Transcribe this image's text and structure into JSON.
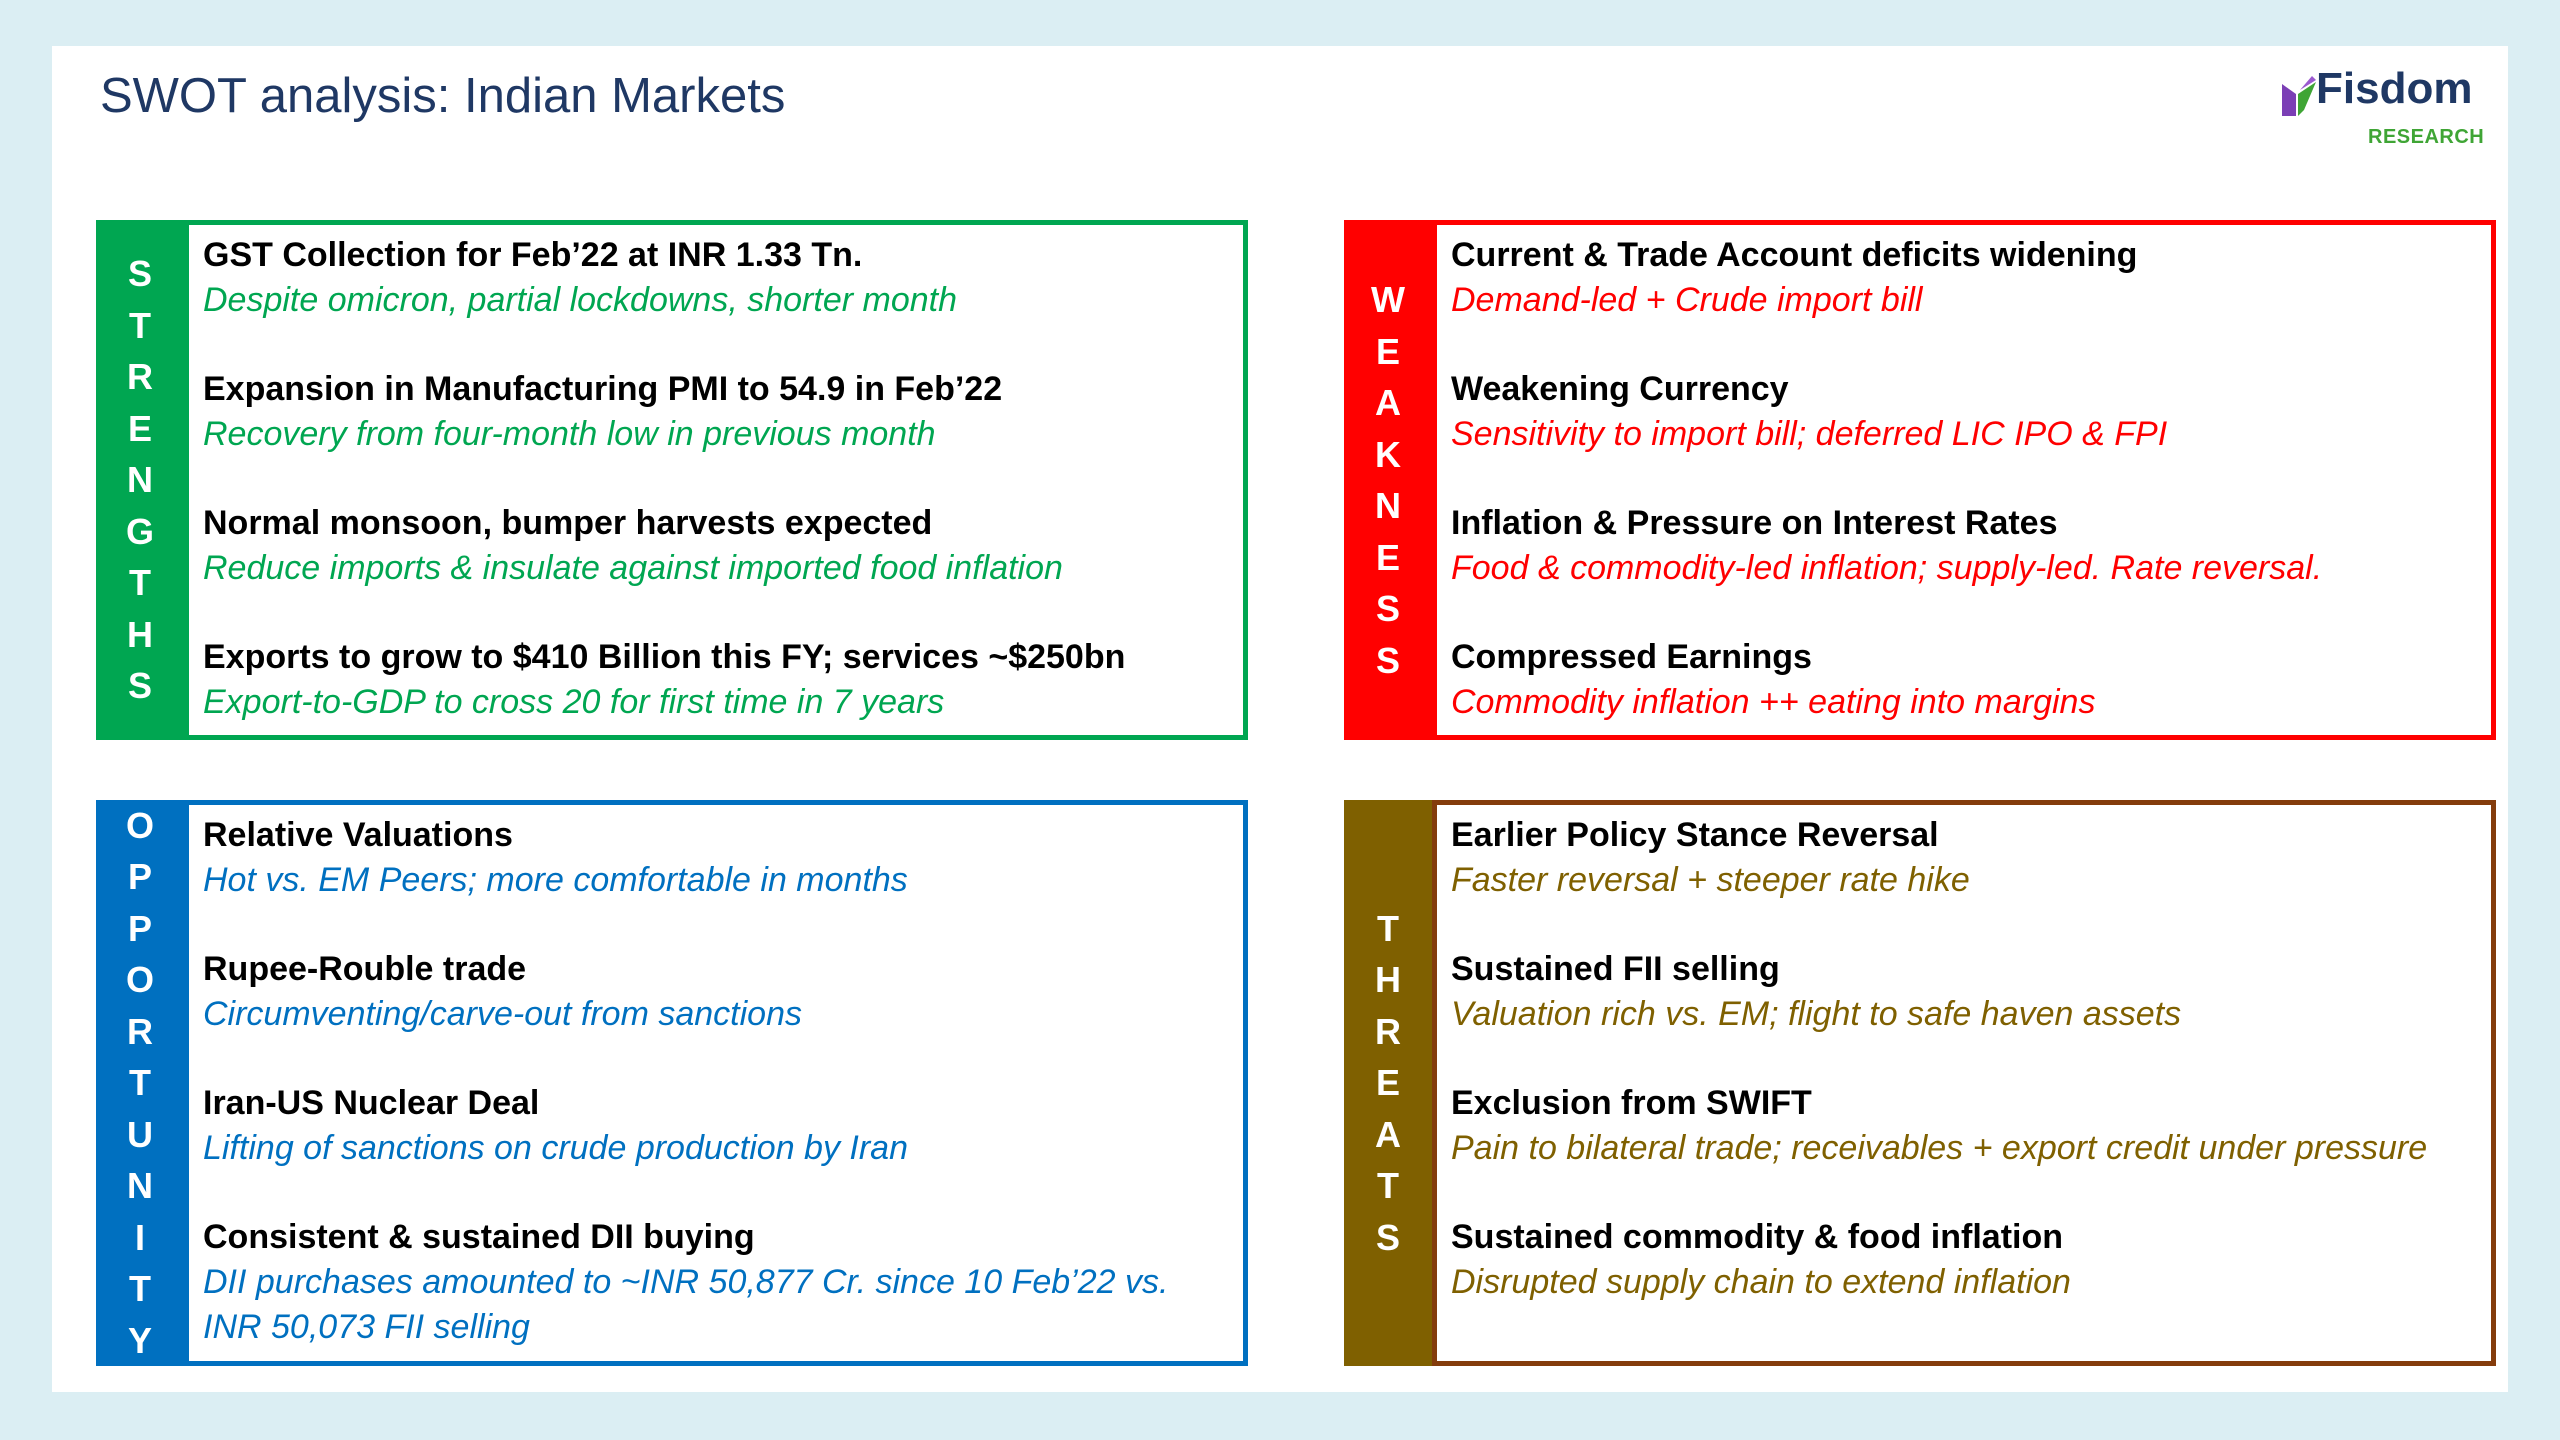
{
  "title": "SWOT analysis: Indian Markets",
  "logo": {
    "name": "Fisdom",
    "sub": "RESEARCH",
    "icon": "fisdom-leaf-icon"
  },
  "colors": {
    "strengths": "#00a651",
    "weaknesses": "#ff0000",
    "opportunity": "#0070c0",
    "threats": "#7f6000",
    "threats_border": "#843c0c"
  },
  "strengths": {
    "letters": [
      "S",
      "T",
      "R",
      "E",
      "N",
      "G",
      "T",
      "H",
      "S"
    ],
    "items": [
      {
        "head": "GST Collection for Feb’22 at INR 1.33 Tn.",
        "sub": "Despite omicron, partial lockdowns, shorter month"
      },
      {
        "head": "Expansion in Manufacturing PMI to 54.9 in Feb’22",
        "sub": "Recovery from four-month low in previous month"
      },
      {
        "head": "Normal monsoon, bumper harvests expected",
        "sub": "Reduce imports & insulate against imported food inflation"
      },
      {
        "head": "Exports to grow to $410 Billion this FY; services ~$250bn",
        "sub": "Export-to-GDP to cross 20 for first time in 7 years"
      }
    ]
  },
  "weaknesses": {
    "letters": [
      "W",
      "E",
      "A",
      "K",
      "N",
      "E",
      "S",
      "S"
    ],
    "items": [
      {
        "head": "Current & Trade Account deficits widening",
        "sub": "Demand-led + Crude import bill"
      },
      {
        "head": "Weakening Currency",
        "sub": "Sensitivity to import bill; deferred LIC IPO & FPI"
      },
      {
        "head": "Inflation & Pressure on Interest Rates",
        "sub": "Food & commodity-led inflation; supply-led. Rate reversal."
      },
      {
        "head": "Compressed Earnings",
        "sub": "Commodity inflation ++ eating into margins"
      }
    ]
  },
  "opportunity": {
    "letters": [
      "O",
      "P",
      "P",
      "O",
      "R",
      "T",
      "U",
      "N",
      "I",
      "T",
      "Y"
    ],
    "items": [
      {
        "head": "Relative Valuations",
        "sub": "Hot vs. EM Peers; more comfortable in months"
      },
      {
        "head": "Rupee-Rouble trade",
        "sub": "Circumventing/carve-out from sanctions"
      },
      {
        "head": "Iran-US Nuclear Deal",
        "sub": "Lifting of sanctions on crude production by Iran"
      },
      {
        "head": "Consistent & sustained DII buying",
        "sub": "DII purchases amounted to ~INR 50,877 Cr. since 10 Feb’22 vs. INR 50,073 FII selling"
      }
    ]
  },
  "threats": {
    "letters": [
      "T",
      "H",
      "R",
      "E",
      "A",
      "T",
      "S"
    ],
    "items": [
      {
        "head": "Earlier Policy Stance Reversal",
        "sub": "Faster reversal + steeper rate hike"
      },
      {
        "head": "Sustained FII selling",
        "sub": "Valuation rich vs. EM; flight to safe haven assets"
      },
      {
        "head": "Exclusion from SWIFT",
        "sub": "Pain to bilateral trade; receivables + export credit under pressure"
      },
      {
        "head": "Sustained commodity & food inflation",
        "sub": "Disrupted supply chain to extend inflation"
      }
    ]
  }
}
